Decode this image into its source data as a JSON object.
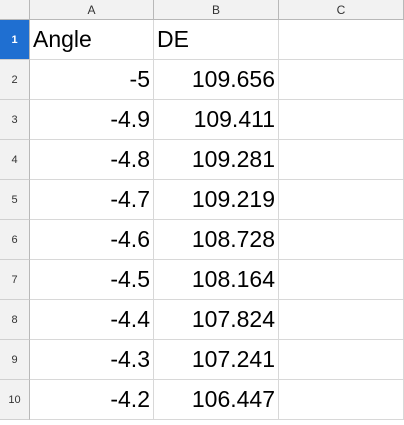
{
  "sheet": {
    "columns": [
      "A",
      "B",
      "C"
    ],
    "rows": [
      {
        "num": "1",
        "a": "Angle",
        "b": "DE",
        "c": ""
      },
      {
        "num": "2",
        "a": "-5",
        "b": "109.656",
        "c": ""
      },
      {
        "num": "3",
        "a": "-4.9",
        "b": "109.411",
        "c": ""
      },
      {
        "num": "4",
        "a": "-4.8",
        "b": "109.281",
        "c": ""
      },
      {
        "num": "5",
        "a": "-4.7",
        "b": "109.219",
        "c": ""
      },
      {
        "num": "6",
        "a": "-4.6",
        "b": "108.728",
        "c": ""
      },
      {
        "num": "7",
        "a": "-4.5",
        "b": "108.164",
        "c": ""
      },
      {
        "num": "8",
        "a": "-4.4",
        "b": "107.824",
        "c": ""
      },
      {
        "num": "9",
        "a": "-4.3",
        "b": "107.241",
        "c": ""
      },
      {
        "num": "10",
        "a": "-4.2",
        "b": "106.447",
        "c": ""
      }
    ]
  },
  "colors": {
    "selected_row_header": "#1f6fd1",
    "header_background": "#f2f2f2"
  }
}
